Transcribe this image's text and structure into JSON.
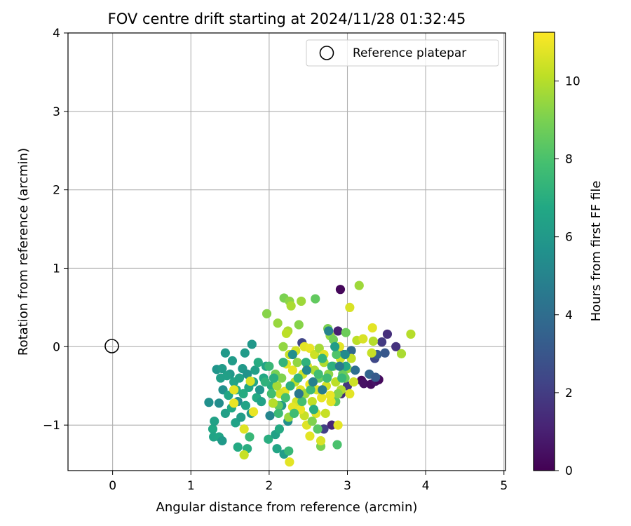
{
  "chart_data": {
    "type": "scatter",
    "title": "FOV centre drift starting at 2024/11/28 01:32:45",
    "xlabel": "Angular distance from reference (arcmin)",
    "ylabel": "Rotation from reference (arcmin)",
    "xlim": [
      -0.57,
      5.02
    ],
    "ylim": [
      -1.58,
      4.0
    ],
    "xticks": [
      "0",
      "1",
      "2",
      "3",
      "4",
      "5"
    ],
    "yticks": [
      "−1",
      "0",
      "1",
      "2",
      "3",
      "4"
    ],
    "grid": true,
    "legend": {
      "position": "top-right",
      "label": "Reference platepar",
      "marker": "open-circle"
    },
    "reference_point": {
      "x": 0,
      "y": 0
    },
    "colorbar": {
      "label": "Hours from first FF file",
      "colormap": "viridis",
      "range": [
        0,
        11.25
      ],
      "ticks": [
        "0",
        "2",
        "4",
        "6",
        "8",
        "10"
      ]
    },
    "series": [
      {
        "points": [
          {
            "x": 2.91,
            "y": 0.73,
            "c": 0.2
          },
          {
            "x": 3.18,
            "y": -0.43,
            "c": 0.3
          },
          {
            "x": 3.21,
            "y": -0.47,
            "c": 0.5
          },
          {
            "x": 3.3,
            "y": -0.48,
            "c": 0.4
          },
          {
            "x": 3.36,
            "y": -0.44,
            "c": 0.6
          },
          {
            "x": 3.4,
            "y": -0.42,
            "c": 0.3
          },
          {
            "x": 3.35,
            "y": -0.15,
            "c": 2.4
          },
          {
            "x": 3.44,
            "y": 0.06,
            "c": 1.9
          },
          {
            "x": 3.51,
            "y": 0.16,
            "c": 1.5
          },
          {
            "x": 3.62,
            "y": 0.0,
            "c": 1.6
          },
          {
            "x": 3.48,
            "y": -0.08,
            "c": 3.1
          },
          {
            "x": 3.38,
            "y": -0.1,
            "c": 3.3
          },
          {
            "x": 3.28,
            "y": -0.35,
            "c": 3.6
          },
          {
            "x": 3.36,
            "y": -0.39,
            "c": 3.2
          },
          {
            "x": 3.0,
            "y": -0.5,
            "c": 1.8
          },
          {
            "x": 2.92,
            "y": -0.6,
            "c": 1.4
          },
          {
            "x": 2.8,
            "y": -1.0,
            "c": 1.2
          },
          {
            "x": 2.7,
            "y": -1.05,
            "c": 2.1
          },
          {
            "x": 2.42,
            "y": 0.05,
            "c": 2.3
          },
          {
            "x": 2.95,
            "y": -0.1,
            "c": 2.8
          },
          {
            "x": 3.05,
            "y": -0.05,
            "c": 3.8
          },
          {
            "x": 2.88,
            "y": 0.2,
            "c": 1.0
          },
          {
            "x": 1.23,
            "y": -0.71,
            "c": 5.6
          },
          {
            "x": 1.28,
            "y": -1.05,
            "c": 6.7
          },
          {
            "x": 1.3,
            "y": -0.95,
            "c": 6.4
          },
          {
            "x": 1.29,
            "y": -1.15,
            "c": 6.5
          },
          {
            "x": 1.36,
            "y": -1.15,
            "c": 6.6
          },
          {
            "x": 1.4,
            "y": -1.2,
            "c": 6.0
          },
          {
            "x": 1.33,
            "y": -0.29,
            "c": 5.8
          },
          {
            "x": 1.4,
            "y": -0.28,
            "c": 6.1
          },
          {
            "x": 1.44,
            "y": -0.08,
            "c": 6.0
          },
          {
            "x": 1.38,
            "y": -0.4,
            "c": 6.3
          },
          {
            "x": 1.41,
            "y": -0.55,
            "c": 5.6
          },
          {
            "x": 1.36,
            "y": -0.72,
            "c": 5.4
          },
          {
            "x": 1.44,
            "y": -0.85,
            "c": 6.3
          },
          {
            "x": 1.48,
            "y": -0.62,
            "c": 6.6
          },
          {
            "x": 1.5,
            "y": -0.35,
            "c": 5.9
          },
          {
            "x": 1.52,
            "y": -0.78,
            "c": 6.7
          },
          {
            "x": 1.55,
            "y": -0.45,
            "c": 6.5
          },
          {
            "x": 1.57,
            "y": -0.97,
            "c": 6.5
          },
          {
            "x": 1.58,
            "y": -0.55,
            "c": 6.8
          },
          {
            "x": 1.6,
            "y": -0.7,
            "c": 5.4
          },
          {
            "x": 1.62,
            "y": -0.4,
            "c": 6.4
          },
          {
            "x": 1.64,
            "y": -0.9,
            "c": 6.2
          },
          {
            "x": 1.66,
            "y": -0.28,
            "c": 6.0
          },
          {
            "x": 1.67,
            "y": -0.6,
            "c": 6.9
          },
          {
            "x": 1.69,
            "y": -0.08,
            "c": 6.1
          },
          {
            "x": 1.7,
            "y": -0.75,
            "c": 6.5
          },
          {
            "x": 1.72,
            "y": -0.35,
            "c": 5.7
          },
          {
            "x": 1.74,
            "y": -0.52,
            "c": 6.7
          },
          {
            "x": 1.75,
            "y": -1.15,
            "c": 7.5
          },
          {
            "x": 1.77,
            "y": -0.85,
            "c": 6.0
          },
          {
            "x": 1.78,
            "y": 0.03,
            "c": 5.9
          },
          {
            "x": 1.8,
            "y": -0.45,
            "c": 6.6
          },
          {
            "x": 1.82,
            "y": -0.3,
            "c": 6.3
          },
          {
            "x": 1.84,
            "y": -0.65,
            "c": 6.8
          },
          {
            "x": 1.86,
            "y": -0.2,
            "c": 6.9
          },
          {
            "x": 1.88,
            "y": -0.55,
            "c": 5.8
          },
          {
            "x": 1.9,
            "y": -0.7,
            "c": 6.4
          },
          {
            "x": 1.93,
            "y": -0.4,
            "c": 6.7
          },
          {
            "x": 1.96,
            "y": -0.25,
            "c": 6.5
          },
          {
            "x": 1.99,
            "y": -1.18,
            "c": 7.0
          },
          {
            "x": 2.01,
            "y": -0.88,
            "c": 5.1
          },
          {
            "x": 2.03,
            "y": -0.5,
            "c": 6.9
          },
          {
            "x": 2.05,
            "y": -0.72,
            "c": 7.4
          },
          {
            "x": 2.08,
            "y": -1.12,
            "c": 6.4
          },
          {
            "x": 2.1,
            "y": -1.3,
            "c": 6.6
          },
          {
            "x": 2.13,
            "y": -1.05,
            "c": 6.8
          },
          {
            "x": 2.16,
            "y": -0.75,
            "c": 6.0
          },
          {
            "x": 2.19,
            "y": -1.37,
            "c": 6.2
          },
          {
            "x": 2.25,
            "y": -1.33,
            "c": 7.5
          },
          {
            "x": 2.24,
            "y": -0.95,
            "c": 5.6
          },
          {
            "x": 1.6,
            "y": -1.28,
            "c": 6.8
          },
          {
            "x": 1.72,
            "y": -1.3,
            "c": 7.0
          },
          {
            "x": 1.53,
            "y": -0.18,
            "c": 6.1
          },
          {
            "x": 1.46,
            "y": -0.37,
            "c": 6.3
          },
          {
            "x": 1.55,
            "y": -0.55,
            "c": 10.8
          },
          {
            "x": 1.55,
            "y": -0.72,
            "c": 10.9
          },
          {
            "x": 1.68,
            "y": -1.05,
            "c": 10.7
          },
          {
            "x": 1.68,
            "y": -1.38,
            "c": 10.3
          },
          {
            "x": 1.76,
            "y": -0.44,
            "c": 10.6
          },
          {
            "x": 1.8,
            "y": -0.83,
            "c": 10.9
          },
          {
            "x": 2.26,
            "y": -1.47,
            "c": 10.8
          },
          {
            "x": 1.97,
            "y": 0.42,
            "c": 9.2
          },
          {
            "x": 2.11,
            "y": 0.3,
            "c": 9.5
          },
          {
            "x": 2.19,
            "y": 0.62,
            "c": 9.0
          },
          {
            "x": 2.26,
            "y": 0.58,
            "c": 9.3
          },
          {
            "x": 2.28,
            "y": 0.52,
            "c": 9.8
          },
          {
            "x": 2.41,
            "y": 0.58,
            "c": 9.6
          },
          {
            "x": 2.59,
            "y": 0.61,
            "c": 8.5
          },
          {
            "x": 2.38,
            "y": 0.28,
            "c": 9.2
          },
          {
            "x": 2.24,
            "y": 0.2,
            "c": 9.8
          },
          {
            "x": 2.22,
            "y": 0.17,
            "c": 10.1
          },
          {
            "x": 2.18,
            "y": 0.0,
            "c": 9.4
          },
          {
            "x": 2.34,
            "y": -0.05,
            "c": 10.5
          },
          {
            "x": 2.45,
            "y": 0.0,
            "c": 10.8
          },
          {
            "x": 2.52,
            "y": -0.02,
            "c": 10.9
          },
          {
            "x": 2.58,
            "y": -0.1,
            "c": 10.4
          },
          {
            "x": 2.64,
            "y": -0.02,
            "c": 9.7
          },
          {
            "x": 2.7,
            "y": -0.1,
            "c": 10.8
          },
          {
            "x": 2.75,
            "y": 0.23,
            "c": 9.0
          },
          {
            "x": 2.78,
            "y": 0.14,
            "c": 9.4
          },
          {
            "x": 2.82,
            "y": 0.09,
            "c": 8.8
          },
          {
            "x": 2.9,
            "y": 0.0,
            "c": 10.8
          },
          {
            "x": 2.98,
            "y": 0.18,
            "c": 8.7
          },
          {
            "x": 3.03,
            "y": 0.5,
            "c": 10.6
          },
          {
            "x": 3.15,
            "y": 0.78,
            "c": 9.6
          },
          {
            "x": 3.12,
            "y": 0.08,
            "c": 10.1
          },
          {
            "x": 3.2,
            "y": 0.1,
            "c": 10.6
          },
          {
            "x": 3.32,
            "y": 0.24,
            "c": 10.8
          },
          {
            "x": 3.33,
            "y": 0.07,
            "c": 10.0
          },
          {
            "x": 3.31,
            "y": -0.08,
            "c": 10.3
          },
          {
            "x": 3.69,
            "y": -0.09,
            "c": 9.8
          },
          {
            "x": 3.81,
            "y": 0.16,
            "c": 10.0
          },
          {
            "x": 3.0,
            "y": -0.28,
            "c": 9.6
          },
          {
            "x": 3.05,
            "y": -0.15,
            "c": 10.2
          },
          {
            "x": 2.97,
            "y": -0.4,
            "c": 8.6
          },
          {
            "x": 2.92,
            "y": -0.55,
            "c": 9.9
          },
          {
            "x": 3.03,
            "y": -0.6,
            "c": 10.8
          },
          {
            "x": 3.08,
            "y": -0.45,
            "c": 10.4
          },
          {
            "x": 2.85,
            "y": -0.7,
            "c": 8.4
          },
          {
            "x": 2.88,
            "y": -1.0,
            "c": 10.8
          },
          {
            "x": 2.87,
            "y": -1.25,
            "c": 8.0
          },
          {
            "x": 2.66,
            "y": -1.27,
            "c": 9.0
          },
          {
            "x": 2.66,
            "y": -1.2,
            "c": 10.6
          },
          {
            "x": 2.52,
            "y": -1.14,
            "c": 10.8
          },
          {
            "x": 2.48,
            "y": -1.0,
            "c": 10.7
          },
          {
            "x": 2.45,
            "y": -0.88,
            "c": 10.3
          },
          {
            "x": 2.4,
            "y": -0.8,
            "c": 10.9
          },
          {
            "x": 2.35,
            "y": -0.7,
            "c": 10.5
          },
          {
            "x": 2.3,
            "y": -0.77,
            "c": 10.8
          },
          {
            "x": 2.25,
            "y": -0.9,
            "c": 9.5
          },
          {
            "x": 2.2,
            "y": -0.57,
            "c": 10.8
          },
          {
            "x": 2.16,
            "y": -0.4,
            "c": 9.1
          },
          {
            "x": 2.14,
            "y": -0.6,
            "c": 10.6
          },
          {
            "x": 2.12,
            "y": -0.75,
            "c": 8.4
          },
          {
            "x": 2.1,
            "y": -0.5,
            "c": 9.7
          },
          {
            "x": 2.08,
            "y": -0.35,
            "c": 8.9
          },
          {
            "x": 2.05,
            "y": -0.72,
            "c": 10.0
          },
          {
            "x": 2.22,
            "y": -0.22,
            "c": 10.7
          },
          {
            "x": 2.26,
            "y": -0.1,
            "c": 10.3
          },
          {
            "x": 2.3,
            "y": -0.3,
            "c": 10.9
          },
          {
            "x": 2.33,
            "y": -0.45,
            "c": 10.1
          },
          {
            "x": 2.36,
            "y": -0.2,
            "c": 9.4
          },
          {
            "x": 2.4,
            "y": -0.55,
            "c": 10.8
          },
          {
            "x": 2.43,
            "y": -0.35,
            "c": 10.4
          },
          {
            "x": 2.46,
            "y": -0.6,
            "c": 9.6
          },
          {
            "x": 2.49,
            "y": -0.25,
            "c": 10.7
          },
          {
            "x": 2.52,
            "y": -0.48,
            "c": 11.0
          },
          {
            "x": 2.55,
            "y": -0.7,
            "c": 10.2
          },
          {
            "x": 2.58,
            "y": -0.3,
            "c": 9.8
          },
          {
            "x": 2.61,
            "y": -0.55,
            "c": 10.6
          },
          {
            "x": 2.64,
            "y": -0.4,
            "c": 8.7
          },
          {
            "x": 2.67,
            "y": -0.65,
            "c": 10.9
          },
          {
            "x": 2.7,
            "y": -0.2,
            "c": 9.9
          },
          {
            "x": 2.73,
            "y": -0.5,
            "c": 10.5
          },
          {
            "x": 2.76,
            "y": -0.35,
            "c": 9.3
          },
          {
            "x": 2.79,
            "y": -0.7,
            "c": 10.8
          },
          {
            "x": 2.82,
            "y": -0.25,
            "c": 8.9
          },
          {
            "x": 2.85,
            "y": -0.45,
            "c": 10.1
          },
          {
            "x": 2.88,
            "y": -0.6,
            "c": 9.2
          },
          {
            "x": 2.91,
            "y": -0.15,
            "c": 10.4
          },
          {
            "x": 2.94,
            "y": -0.35,
            "c": 8.6
          },
          {
            "x": 2.6,
            "y": -0.85,
            "c": 10.7
          },
          {
            "x": 2.55,
            "y": -0.95,
            "c": 9.1
          },
          {
            "x": 2.62,
            "y": -1.05,
            "c": 8.3
          },
          {
            "x": 2.72,
            "y": -0.85,
            "c": 10.3
          },
          {
            "x": 2.78,
            "y": -0.62,
            "c": 10.9
          },
          {
            "x": 1.95,
            "y": -0.45,
            "c": 7.2
          },
          {
            "x": 2.0,
            "y": -0.25,
            "c": 7.5
          },
          {
            "x": 2.03,
            "y": -0.6,
            "c": 7.8
          },
          {
            "x": 2.06,
            "y": -0.4,
            "c": 7.0
          },
          {
            "x": 2.12,
            "y": -0.85,
            "c": 7.6
          },
          {
            "x": 2.18,
            "y": -0.2,
            "c": 7.3
          },
          {
            "x": 2.21,
            "y": -0.65,
            "c": 7.9
          },
          {
            "x": 2.27,
            "y": -0.5,
            "c": 7.1
          },
          {
            "x": 2.32,
            "y": -0.85,
            "c": 7.7
          },
          {
            "x": 2.37,
            "y": -0.4,
            "c": 7.4
          },
          {
            "x": 2.42,
            "y": -0.7,
            "c": 7.9
          },
          {
            "x": 2.47,
            "y": -0.2,
            "c": 7.2
          },
          {
            "x": 2.53,
            "y": -0.55,
            "c": 7.6
          },
          {
            "x": 2.57,
            "y": -0.8,
            "c": 7.0
          },
          {
            "x": 2.63,
            "y": -0.35,
            "c": 7.8
          },
          {
            "x": 2.68,
            "y": -0.15,
            "c": 7.3
          },
          {
            "x": 2.74,
            "y": -0.4,
            "c": 7.7
          },
          {
            "x": 2.8,
            "y": -0.25,
            "c": 7.1
          },
          {
            "x": 2.86,
            "y": -0.1,
            "c": 8.1
          },
          {
            "x": 2.93,
            "y": -0.4,
            "c": 7.5
          },
          {
            "x": 2.98,
            "y": -0.25,
            "c": 6.8
          },
          {
            "x": 2.84,
            "y": 0.0,
            "c": 6.2
          },
          {
            "x": 2.76,
            "y": 0.2,
            "c": 5.0
          },
          {
            "x": 2.68,
            "y": -0.55,
            "c": 4.7
          },
          {
            "x": 2.48,
            "y": -0.3,
            "c": 5.2
          },
          {
            "x": 2.38,
            "y": -0.6,
            "c": 4.4
          },
          {
            "x": 2.3,
            "y": -0.1,
            "c": 5.5
          },
          {
            "x": 2.56,
            "y": -0.45,
            "c": 4.9
          },
          {
            "x": 2.9,
            "y": -0.25,
            "c": 4.6
          },
          {
            "x": 2.97,
            "y": -0.1,
            "c": 5.3
          },
          {
            "x": 3.1,
            "y": -0.3,
            "c": 4.1
          }
        ]
      }
    ]
  }
}
